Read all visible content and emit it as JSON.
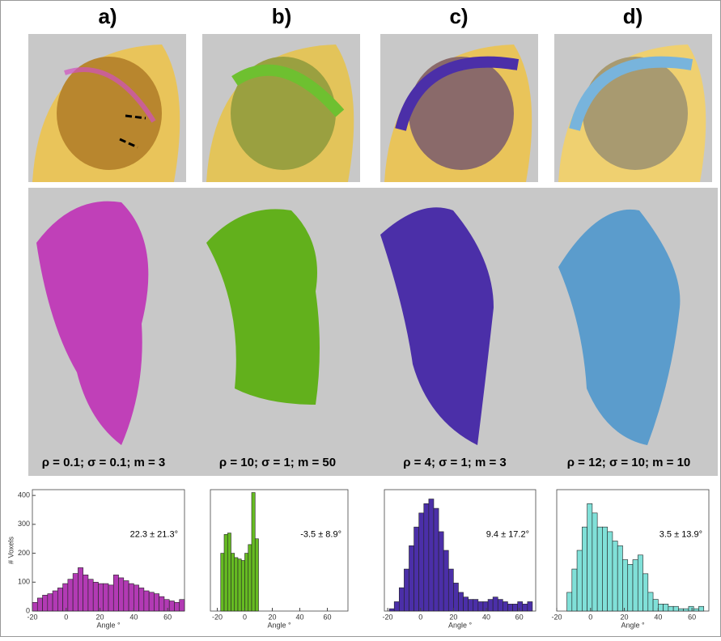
{
  "panels": [
    {
      "label": "a)",
      "params": "ρ = 0.1; σ = 0.1; m = 3"
    },
    {
      "label": "b)",
      "params": "ρ = 10; σ = 1; m = 50"
    },
    {
      "label": "c)",
      "params": "ρ = 4; σ = 1; m = 3"
    },
    {
      "label": "d)",
      "params": "ρ = 12; σ = 10; m = 10"
    }
  ],
  "chart_data": [
    {
      "type": "histogram",
      "color": "#b23ab4",
      "annotation": "22.3 ± 21.3°",
      "xlabel": "Angle °",
      "ylabel": "# Voxels",
      "bins": [
        -20,
        -17,
        -14,
        -11,
        -8,
        -5,
        -2,
        1,
        4,
        7,
        10,
        13,
        16,
        19,
        22,
        25,
        28,
        31,
        34,
        37,
        40,
        43,
        46,
        49,
        52,
        55,
        58,
        61,
        64,
        67,
        70
      ],
      "values": [
        30,
        45,
        55,
        60,
        70,
        80,
        95,
        110,
        130,
        150,
        125,
        110,
        100,
        95,
        95,
        90,
        125,
        115,
        105,
        95,
        90,
        80,
        70,
        65,
        60,
        50,
        40,
        35,
        30,
        40
      ],
      "xlim": [
        -20,
        70
      ],
      "xticks": [
        -20,
        0,
        20,
        40,
        60
      ],
      "ylim": [
        0,
        420
      ],
      "yticks": [
        0,
        100,
        200,
        300,
        400
      ]
    },
    {
      "type": "histogram",
      "color": "#66bb22",
      "annotation": "-3.5 ± 8.9°",
      "xlabel": "Angle °",
      "bins": [
        -17.5,
        -15,
        -12.5,
        -10,
        -7.5,
        -5,
        -2.5,
        0,
        2.5,
        5,
        7.5,
        10
      ],
      "values": [
        200,
        265,
        270,
        200,
        185,
        180,
        175,
        200,
        230,
        410,
        250
      ],
      "xlim": [
        -25,
        75
      ],
      "xticks": [
        -20,
        0,
        20,
        40,
        60
      ],
      "ylim": [
        0,
        420
      ]
    },
    {
      "type": "histogram",
      "color": "#4b2fa8",
      "annotation": "9.4 ± 17.2°",
      "xlabel": "Angle °",
      "bins": [
        -19,
        -16,
        -13,
        -10,
        -7,
        -4,
        -1,
        2,
        5,
        8,
        11,
        14,
        17,
        20,
        23,
        26,
        29,
        32,
        35,
        38,
        41,
        44,
        47,
        50,
        53,
        56,
        59,
        62,
        65,
        68
      ],
      "values": [
        5,
        20,
        50,
        90,
        140,
        180,
        210,
        230,
        240,
        220,
        170,
        130,
        90,
        60,
        40,
        30,
        25,
        25,
        20,
        20,
        25,
        30,
        25,
        20,
        15,
        15,
        20,
        15,
        20
      ],
      "xlim": [
        -22,
        70
      ],
      "xticks": [
        -20,
        0,
        20,
        40,
        60
      ],
      "ylim": [
        0,
        260
      ]
    },
    {
      "type": "histogram",
      "color": "#80e0d8",
      "annotation": "3.5 ± 13.9°",
      "xlabel": "Angle °",
      "bins": [
        -14,
        -11,
        -8,
        -5,
        -2,
        1,
        4,
        7,
        10,
        13,
        16,
        19,
        22,
        25,
        28,
        31,
        34,
        37,
        40,
        43,
        46,
        49,
        52,
        55,
        58,
        61,
        64,
        67
      ],
      "values": [
        40,
        90,
        130,
        180,
        230,
        210,
        180,
        180,
        170,
        150,
        140,
        110,
        100,
        110,
        120,
        80,
        40,
        25,
        15,
        15,
        10,
        10,
        5,
        5,
        10,
        5,
        10
      ],
      "xlim": [
        -20,
        70
      ],
      "xticks": [
        -20,
        0,
        20,
        40,
        60
      ],
      "ylim": [
        0,
        260
      ]
    }
  ]
}
